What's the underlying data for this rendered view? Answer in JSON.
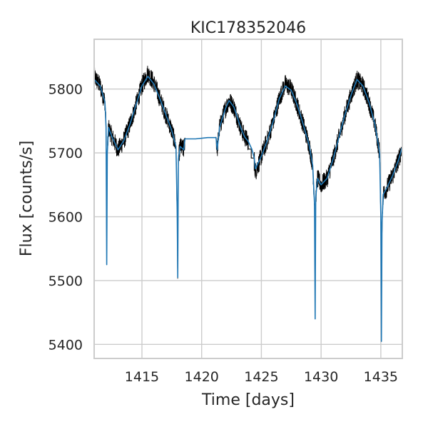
{
  "chart_data": {
    "type": "line",
    "title": "KIC178352046",
    "xlabel": "Time [days]",
    "ylabel": "Flux [counts/s]",
    "xlim": [
      1411.0,
      1436.8
    ],
    "ylim": [
      5378,
      5878
    ],
    "xticks": [
      1415,
      1420,
      1425,
      1430,
      1435
    ],
    "yticks": [
      5400,
      5500,
      5600,
      5700,
      5800
    ],
    "grid": true,
    "colors": {
      "raw": "#000000",
      "binned": "#1f77b4",
      "grid": "#cccccc",
      "text": "#262626"
    },
    "series": [
      {
        "role": "raw",
        "color": "#000000",
        "scatter": 15,
        "x": [
          1411.0,
          1411.5,
          1411.9,
          1412.0,
          1412.05,
          1412.1,
          1412.2,
          1412.5,
          1413.0,
          1413.5,
          1414.0,
          1414.5,
          1415.0,
          1415.5,
          1416.0,
          1416.5,
          1417.0,
          1417.5,
          1417.85,
          1417.95,
          1418.0,
          1418.05,
          1418.2,
          1418.5,
          1418.6,
          1419.5,
          1420.5,
          1421.2,
          1421.3,
          1421.5,
          1422.0,
          1422.3,
          1422.7,
          1423.0,
          1423.3,
          1423.6,
          1423.9,
          1424.2,
          1424.4,
          1424.5,
          1425.0,
          1425.5,
          1426.0,
          1426.5,
          1427.0,
          1427.5,
          1428.0,
          1428.5,
          1429.0,
          1429.3,
          1429.45,
          1429.5,
          1429.55,
          1429.7,
          1430.0,
          1430.5,
          1431.0,
          1431.5,
          1432.0,
          1432.5,
          1433.0,
          1433.5,
          1434.0,
          1434.5,
          1434.9,
          1435.0,
          1435.05,
          1435.1,
          1435.2,
          1435.5,
          1436.0,
          1436.5,
          1436.8
        ],
        "y": [
          5820,
          5805,
          5780,
          5740,
          5530,
          5700,
          5740,
          5725,
          5705,
          5720,
          5745,
          5775,
          5805,
          5825,
          5810,
          5785,
          5760,
          5735,
          5710,
          5610,
          5500,
          5690,
          5710,
          5705,
          5722,
          5722,
          5724,
          5724,
          5705,
          5740,
          5770,
          5782,
          5772,
          5755,
          5738,
          5725,
          5718,
          5706,
          5692,
          5670,
          5695,
          5720,
          5750,
          5785,
          5808,
          5800,
          5775,
          5745,
          5712,
          5680,
          5620,
          5440,
          5630,
          5660,
          5650,
          5660,
          5690,
          5725,
          5760,
          5790,
          5815,
          5805,
          5780,
          5745,
          5700,
          5600,
          5410,
          5590,
          5635,
          5645,
          5665,
          5690,
          5710
        ]
      },
      {
        "role": "binned",
        "color": "#1f77b4",
        "x": [
          1411.0,
          1411.5,
          1411.9,
          1412.0,
          1412.05,
          1412.1,
          1412.2,
          1412.5,
          1413.0,
          1413.5,
          1414.0,
          1414.5,
          1415.0,
          1415.5,
          1416.0,
          1416.5,
          1417.0,
          1417.5,
          1417.85,
          1417.95,
          1418.0,
          1418.05,
          1418.2,
          1418.5,
          1418.6,
          1419.5,
          1420.5,
          1421.2,
          1421.3,
          1421.5,
          1422.0,
          1422.3,
          1422.7,
          1423.0,
          1423.3,
          1423.6,
          1423.9,
          1424.2,
          1424.4,
          1424.5,
          1425.0,
          1425.5,
          1426.0,
          1426.5,
          1427.0,
          1427.5,
          1428.0,
          1428.5,
          1429.0,
          1429.3,
          1429.45,
          1429.5,
          1429.55,
          1429.7,
          1430.0,
          1430.5,
          1431.0,
          1431.5,
          1432.0,
          1432.5,
          1433.0,
          1433.5,
          1434.0,
          1434.5,
          1434.9,
          1435.0,
          1435.05,
          1435.1,
          1435.2,
          1435.5,
          1436.0,
          1436.5,
          1436.8
        ],
        "y": [
          5815,
          5805,
          5780,
          5740,
          5525,
          5700,
          5740,
          5725,
          5705,
          5720,
          5745,
          5775,
          5805,
          5820,
          5808,
          5785,
          5760,
          5735,
          5710,
          5610,
          5505,
          5690,
          5710,
          5705,
          5722,
          5722,
          5724,
          5724,
          5705,
          5740,
          5770,
          5782,
          5772,
          5755,
          5738,
          5725,
          5718,
          5706,
          5692,
          5675,
          5695,
          5720,
          5750,
          5785,
          5805,
          5798,
          5775,
          5745,
          5712,
          5680,
          5620,
          5440,
          5630,
          5660,
          5650,
          5660,
          5690,
          5725,
          5760,
          5790,
          5815,
          5805,
          5780,
          5745,
          5700,
          5600,
          5405,
          5590,
          5635,
          5645,
          5665,
          5690,
          5710
        ]
      }
    ]
  }
}
